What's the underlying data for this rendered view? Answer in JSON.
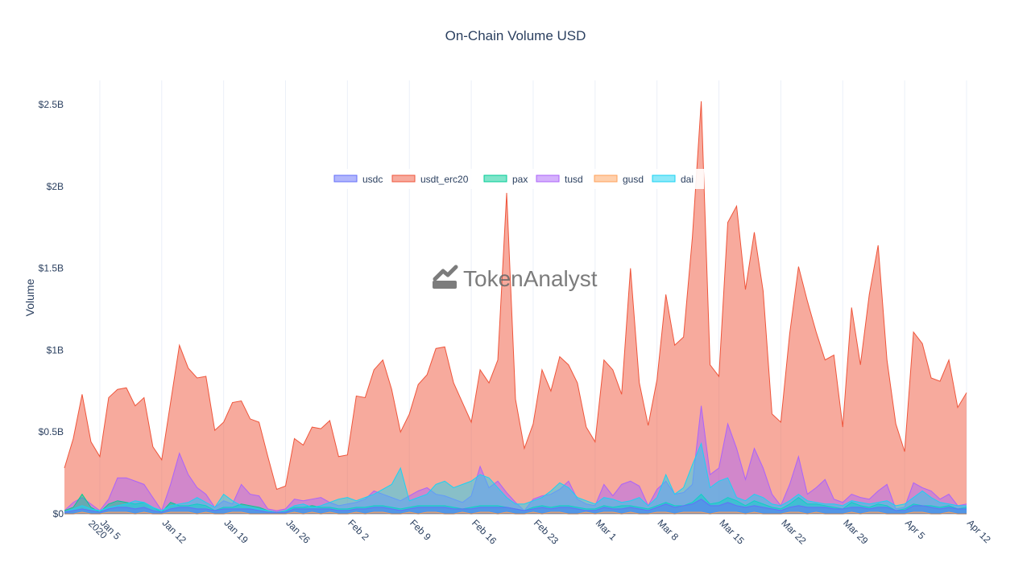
{
  "chart_data": {
    "type": "area",
    "title": "On-Chain Volume USD",
    "xlabel": "",
    "ylabel": "Volume",
    "ylim": [
      0,
      2.6
    ],
    "y_unit": "billions USD",
    "y_ticks": [
      {
        "value": 0,
        "label": "$0"
      },
      {
        "value": 0.5,
        "label": "$0.5B"
      },
      {
        "value": 1,
        "label": "$1B"
      },
      {
        "value": 1.5,
        "label": "$1.5B"
      },
      {
        "value": 2,
        "label": "$2B"
      },
      {
        "value": 2.5,
        "label": "$2.5B"
      }
    ],
    "x_start": "Jan 1 2020",
    "x_ticks": [
      {
        "day": 4,
        "label": "Jan 5",
        "sublabel": "2020"
      },
      {
        "day": 11,
        "label": "Jan 12"
      },
      {
        "day": 18,
        "label": "Jan 19"
      },
      {
        "day": 25,
        "label": "Jan 26"
      },
      {
        "day": 32,
        "label": "Feb 2"
      },
      {
        "day": 39,
        "label": "Feb 9"
      },
      {
        "day": 46,
        "label": "Feb 16"
      },
      {
        "day": 53,
        "label": "Feb 23"
      },
      {
        "day": 60,
        "label": "Mar 1"
      },
      {
        "day": 67,
        "label": "Mar 8"
      },
      {
        "day": 74,
        "label": "Mar 15"
      },
      {
        "day": 81,
        "label": "Mar 22"
      },
      {
        "day": 88,
        "label": "Mar 29"
      },
      {
        "day": 95,
        "label": "Apr 5"
      },
      {
        "day": 102,
        "label": "Apr 12"
      }
    ],
    "x_range_days": [
      0,
      102
    ],
    "legend_position": "top-center (inside plot)",
    "grid": "vertical gridlines",
    "series": [
      {
        "name": "usdt_erc20",
        "color": "#ef553b",
        "values": [
          0.28,
          0.46,
          0.73,
          0.44,
          0.35,
          0.71,
          0.76,
          0.77,
          0.66,
          0.71,
          0.41,
          0.33,
          0.68,
          1.03,
          0.89,
          0.83,
          0.84,
          0.51,
          0.56,
          0.68,
          0.69,
          0.58,
          0.56,
          0.35,
          0.15,
          0.17,
          0.46,
          0.42,
          0.53,
          0.52,
          0.57,
          0.35,
          0.36,
          0.72,
          0.71,
          0.88,
          0.94,
          0.76,
          0.5,
          0.61,
          0.79,
          0.85,
          1.01,
          1.02,
          0.8,
          0.68,
          0.56,
          0.88,
          0.8,
          0.94,
          1.96,
          0.7,
          0.4,
          0.55,
          0.88,
          0.75,
          0.96,
          0.91,
          0.8,
          0.53,
          0.44,
          0.94,
          0.88,
          0.73,
          1.5,
          0.8,
          0.54,
          0.82,
          1.34,
          1.03,
          1.08,
          1.69,
          2.52,
          0.91,
          0.84,
          1.78,
          1.88,
          1.37,
          1.72,
          1.36,
          0.61,
          0.56,
          1.1,
          1.51,
          1.3,
          1.11,
          0.94,
          0.97,
          0.53,
          1.26,
          0.91,
          1.34,
          1.64,
          0.94,
          0.55,
          0.38,
          1.11,
          1.04,
          0.83,
          0.81,
          0.94,
          0.65,
          0.74
        ]
      },
      {
        "name": "tusd",
        "color": "#ab63fa",
        "values": [
          0.02,
          0.07,
          0.1,
          0.06,
          0.02,
          0.09,
          0.22,
          0.22,
          0.2,
          0.18,
          0.1,
          0.02,
          0.18,
          0.37,
          0.24,
          0.16,
          0.12,
          0.04,
          0.08,
          0.06,
          0.18,
          0.12,
          0.11,
          0.03,
          0.02,
          0.03,
          0.09,
          0.08,
          0.09,
          0.1,
          0.07,
          0.05,
          0.06,
          0.07,
          0.09,
          0.14,
          0.12,
          0.1,
          0.08,
          0.11,
          0.14,
          0.16,
          0.12,
          0.11,
          0.09,
          0.07,
          0.11,
          0.29,
          0.16,
          0.2,
          0.13,
          0.07,
          0.02,
          0.09,
          0.11,
          0.12,
          0.15,
          0.2,
          0.09,
          0.06,
          0.05,
          0.18,
          0.11,
          0.18,
          0.2,
          0.17,
          0.05,
          0.15,
          0.2,
          0.12,
          0.13,
          0.18,
          0.66,
          0.24,
          0.28,
          0.55,
          0.4,
          0.21,
          0.4,
          0.28,
          0.12,
          0.05,
          0.18,
          0.35,
          0.12,
          0.16,
          0.21,
          0.09,
          0.07,
          0.12,
          0.1,
          0.09,
          0.14,
          0.18,
          0.03,
          0.04,
          0.19,
          0.16,
          0.14,
          0.09,
          0.12,
          0.05,
          0.06
        ]
      },
      {
        "name": "pax",
        "color": "#00cc96",
        "values": [
          0.02,
          0.04,
          0.12,
          0.04,
          0.01,
          0.06,
          0.08,
          0.07,
          0.06,
          0.07,
          0.04,
          0.01,
          0.07,
          0.05,
          0.05,
          0.06,
          0.05,
          0.02,
          0.04,
          0.04,
          0.06,
          0.05,
          0.04,
          0.02,
          0.01,
          0.02,
          0.04,
          0.04,
          0.05,
          0.04,
          0.04,
          0.03,
          0.03,
          0.04,
          0.04,
          0.05,
          0.05,
          0.04,
          0.03,
          0.04,
          0.05,
          0.05,
          0.05,
          0.05,
          0.04,
          0.03,
          0.04,
          0.05,
          0.05,
          0.05,
          0.04,
          0.03,
          0.02,
          0.04,
          0.05,
          0.04,
          0.05,
          0.05,
          0.04,
          0.03,
          0.03,
          0.05,
          0.04,
          0.05,
          0.05,
          0.04,
          0.03,
          0.05,
          0.07,
          0.05,
          0.05,
          0.07,
          0.12,
          0.06,
          0.07,
          0.1,
          0.08,
          0.05,
          0.08,
          0.06,
          0.04,
          0.03,
          0.06,
          0.1,
          0.06,
          0.06,
          0.05,
          0.04,
          0.03,
          0.07,
          0.05,
          0.04,
          0.06,
          0.05,
          0.02,
          0.03,
          0.06,
          0.05,
          0.05,
          0.04,
          0.05,
          0.03,
          0.04
        ]
      },
      {
        "name": "dai",
        "color": "#19d3f3",
        "values": [
          0.01,
          0.03,
          0.05,
          0.03,
          0.02,
          0.04,
          0.05,
          0.06,
          0.08,
          0.07,
          0.04,
          0.02,
          0.05,
          0.06,
          0.07,
          0.1,
          0.07,
          0.04,
          0.12,
          0.08,
          0.05,
          0.04,
          0.03,
          0.02,
          0.01,
          0.02,
          0.05,
          0.06,
          0.04,
          0.05,
          0.07,
          0.09,
          0.1,
          0.08,
          0.1,
          0.12,
          0.15,
          0.18,
          0.28,
          0.08,
          0.1,
          0.12,
          0.18,
          0.2,
          0.16,
          0.18,
          0.2,
          0.24,
          0.22,
          0.16,
          0.1,
          0.06,
          0.06,
          0.08,
          0.1,
          0.14,
          0.19,
          0.16,
          0.1,
          0.08,
          0.06,
          0.1,
          0.09,
          0.07,
          0.08,
          0.1,
          0.05,
          0.1,
          0.24,
          0.12,
          0.16,
          0.3,
          0.43,
          0.16,
          0.2,
          0.22,
          0.1,
          0.08,
          0.12,
          0.1,
          0.06,
          0.05,
          0.08,
          0.12,
          0.08,
          0.07,
          0.06,
          0.06,
          0.05,
          0.08,
          0.07,
          0.06,
          0.07,
          0.08,
          0.05,
          0.06,
          0.1,
          0.14,
          0.1,
          0.07,
          0.06,
          0.05,
          0.05
        ]
      },
      {
        "name": "usdc",
        "color": "#636efa",
        "values": [
          0.01,
          0.02,
          0.03,
          0.02,
          0.01,
          0.03,
          0.04,
          0.04,
          0.03,
          0.04,
          0.02,
          0.01,
          0.03,
          0.04,
          0.04,
          0.03,
          0.03,
          0.02,
          0.03,
          0.03,
          0.03,
          0.03,
          0.02,
          0.01,
          0.01,
          0.01,
          0.03,
          0.03,
          0.03,
          0.03,
          0.03,
          0.02,
          0.02,
          0.03,
          0.03,
          0.04,
          0.04,
          0.03,
          0.02,
          0.03,
          0.04,
          0.04,
          0.04,
          0.04,
          0.03,
          0.03,
          0.03,
          0.04,
          0.04,
          0.04,
          0.04,
          0.03,
          0.02,
          0.03,
          0.04,
          0.03,
          0.04,
          0.04,
          0.03,
          0.02,
          0.02,
          0.04,
          0.03,
          0.03,
          0.04,
          0.03,
          0.02,
          0.04,
          0.06,
          0.04,
          0.05,
          0.06,
          0.09,
          0.05,
          0.05,
          0.07,
          0.05,
          0.04,
          0.05,
          0.04,
          0.03,
          0.02,
          0.04,
          0.05,
          0.04,
          0.04,
          0.04,
          0.03,
          0.03,
          0.04,
          0.04,
          0.03,
          0.04,
          0.04,
          0.02,
          0.02,
          0.05,
          0.05,
          0.04,
          0.03,
          0.04,
          0.03,
          0.03
        ]
      },
      {
        "name": "gusd",
        "color": "#ffa15a",
        "values": [
          0.0,
          0.0,
          0.01,
          0.0,
          0.0,
          0.01,
          0.01,
          0.01,
          0.0,
          0.01,
          0.0,
          0.0,
          0.01,
          0.01,
          0.01,
          0.0,
          0.01,
          0.0,
          0.0,
          0.01,
          0.01,
          0.0,
          0.0,
          0.0,
          0.0,
          0.0,
          0.01,
          0.0,
          0.01,
          0.0,
          0.01,
          0.0,
          0.0,
          0.01,
          0.0,
          0.01,
          0.01,
          0.0,
          0.0,
          0.01,
          0.0,
          0.01,
          0.01,
          0.0,
          0.0,
          0.01,
          0.0,
          0.01,
          0.01,
          0.0,
          0.01,
          0.0,
          0.0,
          0.01,
          0.0,
          0.01,
          0.01,
          0.0,
          0.0,
          0.01,
          0.0,
          0.01,
          0.01,
          0.0,
          0.01,
          0.0,
          0.0,
          0.01,
          0.01,
          0.0,
          0.01,
          0.01,
          0.01,
          0.0,
          0.01,
          0.01,
          0.01,
          0.0,
          0.01,
          0.0,
          0.0,
          0.0,
          0.01,
          0.01,
          0.0,
          0.01,
          0.0,
          0.0,
          0.0,
          0.01,
          0.0,
          0.01,
          0.01,
          0.0,
          0.0,
          0.0,
          0.01,
          0.01,
          0.0,
          0.0,
          0.01,
          0.0,
          0.0
        ]
      }
    ],
    "legend_order": [
      "usdc",
      "usdt_erc20",
      "pax",
      "tusd",
      "gusd",
      "dai"
    ]
  },
  "watermark": {
    "text": "TokenAnalyst",
    "icon": "chart-line-icon"
  }
}
